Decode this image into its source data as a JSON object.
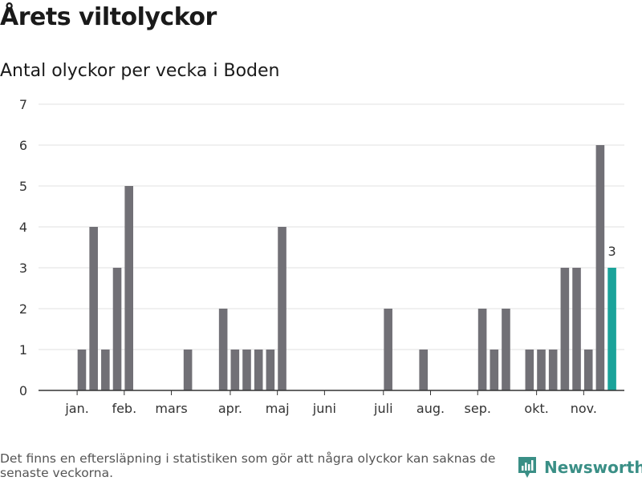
{
  "title": "Årets viltolyckor",
  "subtitle": "Antal olyckor per vecka i Boden",
  "footnote": "Det finns en eftersläpning i statistiken som gör att några olyckor kan saknas de senaste veckorna.",
  "brand": {
    "name": "Newsworthy",
    "icon": "newsworthy-logo-icon"
  },
  "colors": {
    "bar": "#717076",
    "highlight": "#1aa39a",
    "grid": "#e2e2e2",
    "axis": "#333333",
    "brand": "#3a8f86"
  },
  "chart_data": {
    "type": "bar",
    "title": "Antal olyckor per vecka i Boden",
    "xlabel": "",
    "ylabel": "",
    "ylim": [
      0,
      7
    ],
    "yticks": [
      0,
      1,
      2,
      3,
      4,
      5,
      6,
      7
    ],
    "grid": true,
    "x_unit": "vecka",
    "weeks": [
      1,
      2,
      3,
      4,
      5,
      6,
      7,
      8,
      9,
      10,
      11,
      12,
      13,
      14,
      15,
      16,
      17,
      18,
      19,
      20,
      21,
      22,
      23,
      24,
      25,
      26,
      27,
      28,
      29,
      30,
      31,
      32,
      33,
      34,
      35,
      36,
      37,
      38,
      39,
      40,
      41,
      42,
      43,
      44,
      45,
      46
    ],
    "values": [
      0,
      1,
      4,
      1,
      3,
      5,
      0,
      0,
      0,
      0,
      1,
      0,
      0,
      2,
      1,
      1,
      1,
      1,
      4,
      0,
      0,
      0,
      0,
      0,
      0,
      0,
      0,
      2,
      0,
      0,
      1,
      0,
      0,
      0,
      0,
      2,
      1,
      2,
      0,
      1,
      1,
      1,
      3,
      3,
      1,
      6
    ],
    "highlight": {
      "week": 47,
      "value": 3,
      "label": "3"
    },
    "month_ticks": [
      {
        "label": "jan.",
        "week": 1.6
      },
      {
        "label": "feb.",
        "week": 5.6
      },
      {
        "label": "mars",
        "week": 9.6
      },
      {
        "label": "apr.",
        "week": 14.6
      },
      {
        "label": "maj",
        "week": 18.6
      },
      {
        "label": "juni",
        "week": 22.6
      },
      {
        "label": "juli",
        "week": 27.6
      },
      {
        "label": "aug.",
        "week": 31.6
      },
      {
        "label": "sep.",
        "week": 35.6
      },
      {
        "label": "okt.",
        "week": 40.6
      },
      {
        "label": "nov.",
        "week": 44.6
      }
    ]
  }
}
